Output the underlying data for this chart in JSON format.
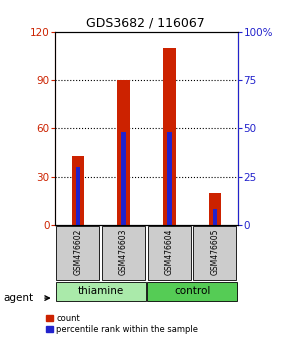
{
  "title": "GDS3682 / 116067",
  "samples": [
    "GSM476602",
    "GSM476603",
    "GSM476604",
    "GSM476605"
  ],
  "red_values": [
    43,
    90,
    110,
    20
  ],
  "blue_values": [
    30,
    48,
    48,
    8
  ],
  "left_ylim": [
    0,
    120
  ],
  "right_ylim": [
    0,
    100
  ],
  "left_yticks": [
    0,
    30,
    60,
    90,
    120
  ],
  "right_yticks": [
    0,
    25,
    50,
    75,
    100
  ],
  "right_yticklabels": [
    "0",
    "25",
    "50",
    "75",
    "100%"
  ],
  "groups": [
    {
      "label": "thiamine",
      "color": "#AAEAAA",
      "samples": [
        0,
        1
      ]
    },
    {
      "label": "control",
      "color": "#55CC55",
      "samples": [
        2,
        3
      ]
    }
  ],
  "agent_label": "agent",
  "red_color": "#CC2200",
  "blue_color": "#2222CC",
  "bg_color": "#CCCCCC",
  "legend_red": "count",
  "legend_blue": "percentile rank within the sample"
}
